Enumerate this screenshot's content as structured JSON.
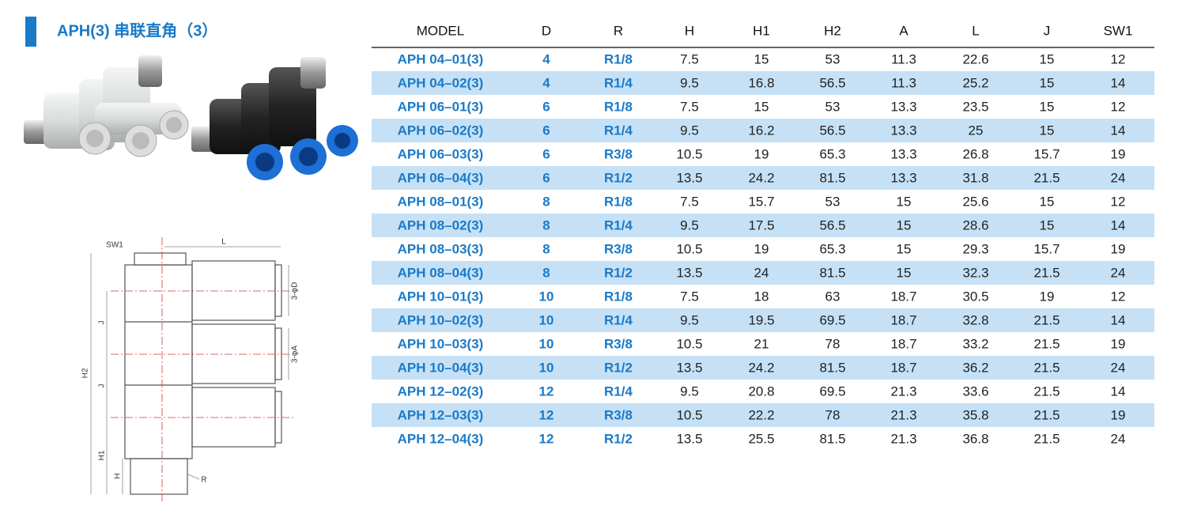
{
  "header": {
    "title": "APH(3) 串联直角（3）"
  },
  "drawing": {
    "labels": [
      "SW1",
      "L",
      "3-φD",
      "3-φA",
      "H2",
      "J",
      "J",
      "H1",
      "H",
      "R"
    ]
  },
  "table": {
    "columns": [
      "MODEL",
      "D",
      "R",
      "H",
      "H1",
      "H2",
      "A",
      "L",
      "J",
      "SW1"
    ],
    "rows": [
      [
        "APH 04–01(3)",
        "4",
        "R1/8",
        "7.5",
        "15",
        "53",
        "11.3",
        "22.6",
        "15",
        "12"
      ],
      [
        "APH 04–02(3)",
        "4",
        "R1/4",
        "9.5",
        "16.8",
        "56.5",
        "11.3",
        "25.2",
        "15",
        "14"
      ],
      [
        "APH 06–01(3)",
        "6",
        "R1/8",
        "7.5",
        "15",
        "53",
        "13.3",
        "23.5",
        "15",
        "12"
      ],
      [
        "APH 06–02(3)",
        "6",
        "R1/4",
        "9.5",
        "16.2",
        "56.5",
        "13.3",
        "25",
        "15",
        "14"
      ],
      [
        "APH 06–03(3)",
        "6",
        "R3/8",
        "10.5",
        "19",
        "65.3",
        "13.3",
        "26.8",
        "15.7",
        "19"
      ],
      [
        "APH 06–04(3)",
        "6",
        "R1/2",
        "13.5",
        "24.2",
        "81.5",
        "13.3",
        "31.8",
        "21.5",
        "24"
      ],
      [
        "APH 08–01(3)",
        "8",
        "R1/8",
        "7.5",
        "15.7",
        "53",
        "15",
        "25.6",
        "15",
        "12"
      ],
      [
        "APH 08–02(3)",
        "8",
        "R1/4",
        "9.5",
        "17.5",
        "56.5",
        "15",
        "28.6",
        "15",
        "14"
      ],
      [
        "APH 08–03(3)",
        "8",
        "R3/8",
        "10.5",
        "19",
        "65.3",
        "15",
        "29.3",
        "15.7",
        "19"
      ],
      [
        "APH 08–04(3)",
        "8",
        "R1/2",
        "13.5",
        "24",
        "81.5",
        "15",
        "32.3",
        "21.5",
        "24"
      ],
      [
        "APH 10–01(3)",
        "10",
        "R1/8",
        "7.5",
        "18",
        "63",
        "18.7",
        "30.5",
        "19",
        "12"
      ],
      [
        "APH 10–02(3)",
        "10",
        "R1/4",
        "9.5",
        "19.5",
        "69.5",
        "18.7",
        "32.8",
        "21.5",
        "14"
      ],
      [
        "APH 10–03(3)",
        "10",
        "R3/8",
        "10.5",
        "21",
        "78",
        "18.7",
        "33.2",
        "21.5",
        "19"
      ],
      [
        "APH 10–04(3)",
        "10",
        "R1/2",
        "13.5",
        "24.2",
        "81.5",
        "18.7",
        "36.2",
        "21.5",
        "24"
      ],
      [
        "APH 12–02(3)",
        "12",
        "R1/4",
        "9.5",
        "20.8",
        "69.5",
        "21.3",
        "33.6",
        "21.5",
        "14"
      ],
      [
        "APH 12–03(3)",
        "12",
        "R3/8",
        "10.5",
        "22.2",
        "78",
        "21.3",
        "35.8",
        "21.5",
        "19"
      ],
      [
        "APH 12–04(3)",
        "12",
        "R1/2",
        "13.5",
        "25.5",
        "81.5",
        "21.3",
        "36.8",
        "21.5",
        "24"
      ]
    ]
  }
}
